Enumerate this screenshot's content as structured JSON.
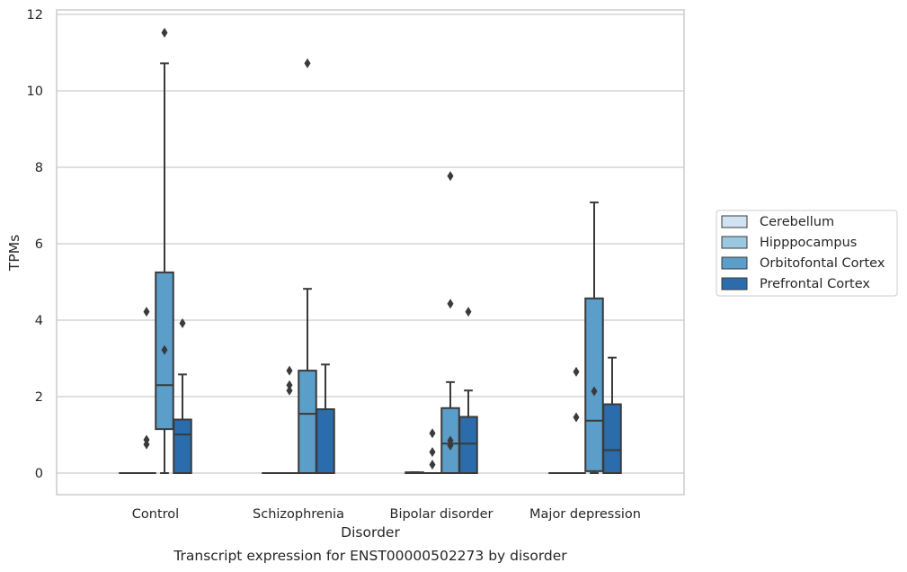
{
  "chart_data": {
    "type": "box",
    "title": "Transcript expression for ENST00000502273 by disorder",
    "xlabel": "Disorder",
    "ylabel": "TPMs",
    "categories": [
      "Control",
      "Schizophrenia",
      "Bipolar disorder",
      "Major depression"
    ],
    "ylim": [
      -0.55,
      12.1
    ],
    "yticks": [
      0,
      2,
      4,
      6,
      8,
      10,
      12
    ],
    "grid": true,
    "legend_position": "right",
    "series": [
      {
        "name": "Cerebellum",
        "color": "#d1e2f2",
        "boxes": [
          {
            "whislo": 0,
            "q1": 0,
            "med": 0,
            "q3": 0,
            "whishi": 0,
            "fliers": []
          },
          {
            "whislo": 0,
            "q1": 0,
            "med": 0,
            "q3": 0,
            "whishi": 0,
            "fliers": []
          },
          {
            "whislo": 0,
            "q1": 0,
            "med": 0,
            "q3": 0.02,
            "whishi": 0.02,
            "fliers": []
          },
          {
            "whislo": 0,
            "q1": 0,
            "med": 0,
            "q3": 0,
            "whishi": 0,
            "fliers": []
          }
        ]
      },
      {
        "name": "Hipppocampus",
        "color": "#9ac8e0",
        "boxes": [
          {
            "whislo": 0,
            "q1": 0,
            "med": 0,
            "q3": 0,
            "whishi": 0,
            "fliers": [
              4.22,
              0.87,
              0.75
            ]
          },
          {
            "whislo": 0,
            "q1": 0,
            "med": 0,
            "q3": 0,
            "whishi": 0,
            "fliers": [
              2.68,
              2.3,
              2.16
            ]
          },
          {
            "whislo": 0,
            "q1": 0,
            "med": 0,
            "q3": 0,
            "whishi": 0,
            "fliers": [
              1.04,
              0.55,
              0.22
            ]
          },
          {
            "whislo": 0,
            "q1": 0,
            "med": 0,
            "q3": 0,
            "whishi": 0,
            "fliers": [
              2.65,
              1.46
            ]
          }
        ]
      },
      {
        "name": "Orbitofontal Cortex",
        "color": "#5a9ec9",
        "boxes": [
          {
            "whislo": 0,
            "q1": 1.15,
            "med": 2.3,
            "q3": 5.25,
            "whishi": 10.72,
            "fliers": [
              11.52,
              3.22
            ]
          },
          {
            "whislo": 0,
            "q1": 0,
            "med": 1.55,
            "q3": 2.68,
            "whishi": 4.82,
            "fliers": [
              10.72
            ]
          },
          {
            "whislo": 0,
            "q1": 0,
            "med": 0.77,
            "q3": 1.7,
            "whishi": 2.38,
            "fliers": [
              7.77,
              4.43,
              0.85,
              0.72
            ]
          },
          {
            "whislo": 0,
            "q1": 0.05,
            "med": 1.37,
            "q3": 4.57,
            "whishi": 7.08,
            "fliers": [
              2.14
            ]
          }
        ]
      },
      {
        "name": "Prefrontal Cortex",
        "color": "#2b6cac",
        "boxes": [
          {
            "whislo": 0,
            "q1": 0,
            "med": 1.01,
            "q3": 1.4,
            "whishi": 2.58,
            "fliers": [
              3.92
            ]
          },
          {
            "whislo": 0,
            "q1": 0,
            "med": 0,
            "q3": 1.67,
            "whishi": 2.84,
            "fliers": []
          },
          {
            "whislo": 0,
            "q1": 0,
            "med": 0.77,
            "q3": 1.47,
            "whishi": 2.16,
            "fliers": [
              4.22
            ]
          },
          {
            "whislo": 0,
            "q1": 0,
            "med": 0.6,
            "q3": 1.8,
            "whishi": 3.02,
            "fliers": []
          }
        ]
      }
    ]
  }
}
